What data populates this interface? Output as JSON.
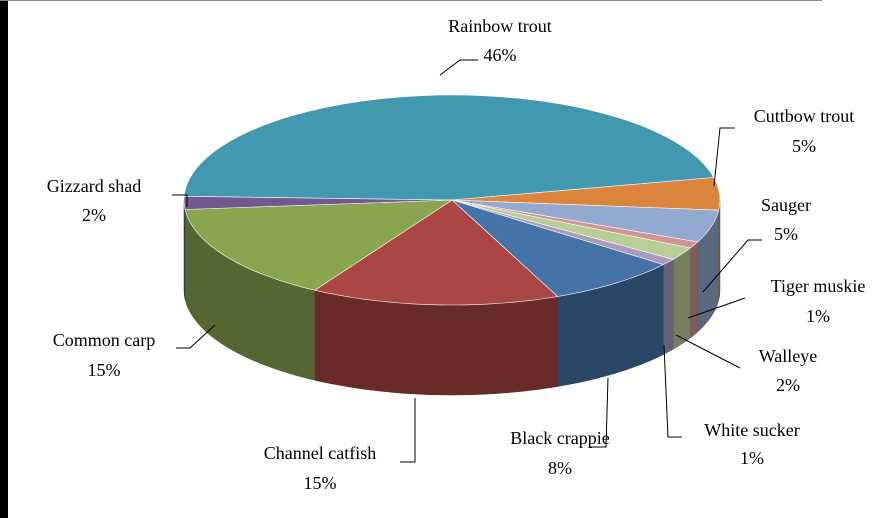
{
  "chart_data": {
    "type": "pie3d",
    "categories": [
      "Rainbow trout",
      "Cuttbow trout",
      "Sauger",
      "Tiger muskie",
      "Walleye",
      "White sucker",
      "Black crappie",
      "Channel catfish",
      "Common carp",
      "Gizzard shad"
    ],
    "values": [
      46,
      5,
      5,
      1,
      2,
      1,
      8,
      15,
      15,
      2
    ],
    "value_labels": [
      "46%",
      "5%",
      "5%",
      "1%",
      "2%",
      "1%",
      "8%",
      "15%",
      "15%",
      "2%"
    ],
    "colors": [
      "#4198AF",
      "#DB843D",
      "#93A9CF",
      "#D19392",
      "#B9CD96",
      "#A99BBD",
      "#4572A7",
      "#AA4643",
      "#89A54E",
      "#71588F"
    ]
  }
}
